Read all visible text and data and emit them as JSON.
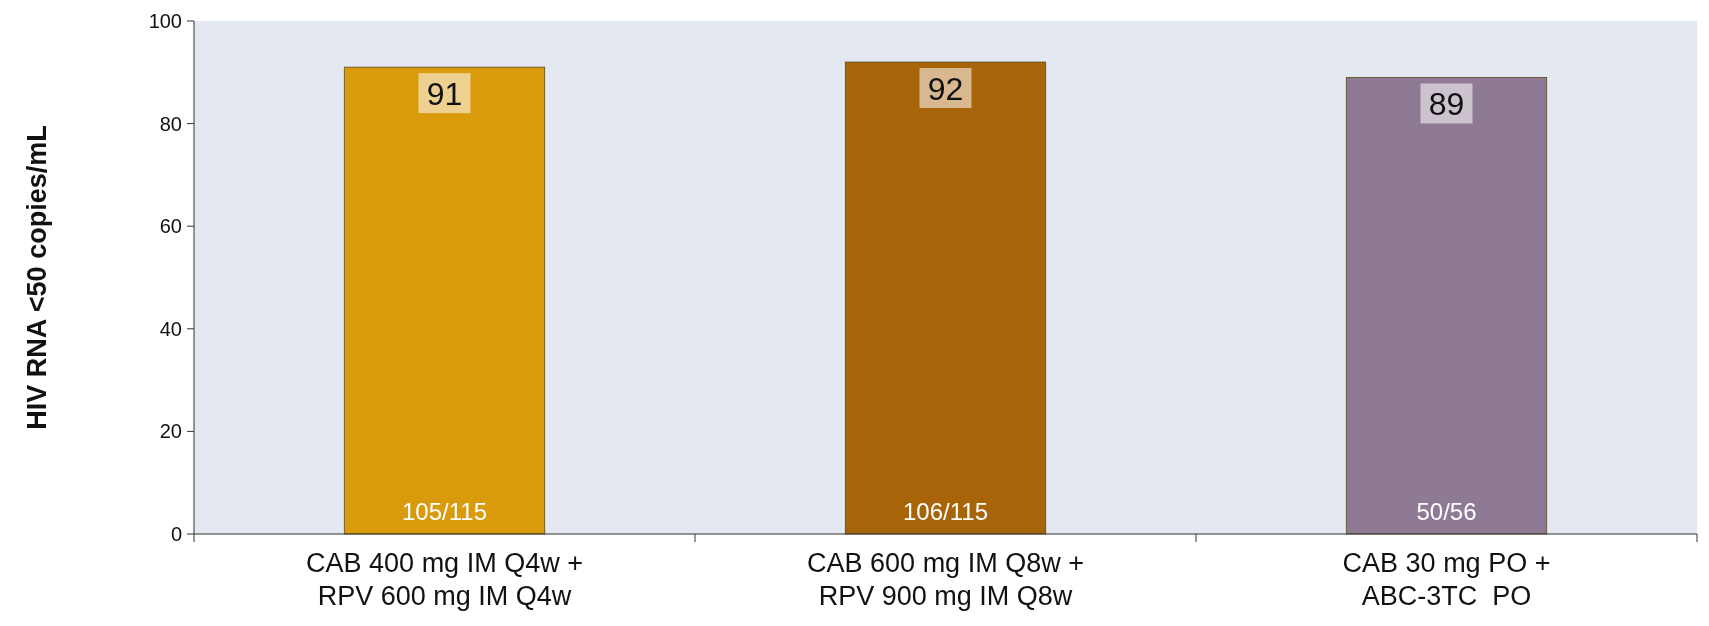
{
  "chart_data": {
    "type": "bar",
    "ylabel": "HIV RNA <50 copies/mL",
    "categories": [
      "CAB 400 mg IM Q4w +\nRPV 600 mg IM Q4w",
      "CAB 600 mg IM Q8w +\nRPV 900 mg IM Q8w",
      "CAB 30 mg PO +\nABC-3TC  PO"
    ],
    "values": [
      91,
      92,
      89
    ],
    "colors": [
      "#d99a0c",
      "#a86408",
      "#8e7a94"
    ],
    "ylim": [
      0,
      100
    ],
    "yticks": [
      0,
      20,
      40,
      60,
      80,
      100
    ],
    "data_labels": true,
    "annotations": [
      "105/115",
      "106/115",
      "50/56"
    ]
  }
}
